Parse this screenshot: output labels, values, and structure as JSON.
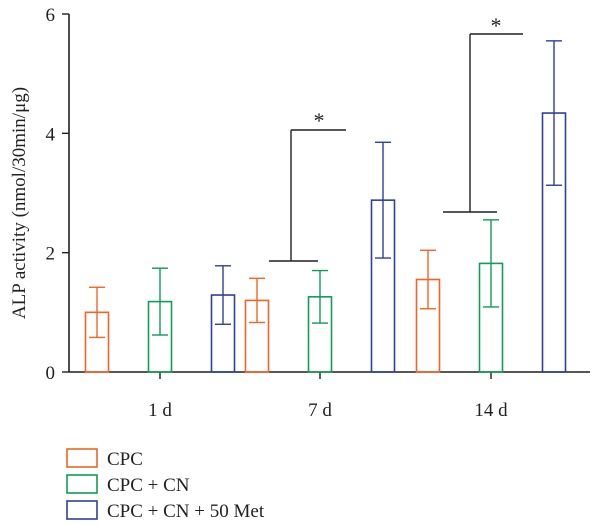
{
  "chart_data": {
    "type": "bar",
    "categories": [
      "1 d",
      "7 d",
      "14 d"
    ],
    "series": [
      {
        "name": "CPC",
        "values": [
          1.0,
          1.2,
          1.55
        ],
        "errors": [
          0.42,
          0.37,
          0.49
        ],
        "color": "#f26522"
      },
      {
        "name": "CPC + CN",
        "values": [
          1.18,
          1.26,
          1.82
        ],
        "errors": [
          0.56,
          0.44,
          0.73
        ],
        "color": "#0f9d58"
      },
      {
        "name": "CPC + CN + 50 Met",
        "values": [
          1.29,
          2.88,
          4.34
        ],
        "errors": [
          0.49,
          0.97,
          1.21
        ],
        "color": "#2e3f9e"
      }
    ],
    "ylabel": "ALP activity (nmol/30min/μg)",
    "xlabel": "",
    "ylim": [
      0,
      6
    ],
    "yticks": [
      0,
      2,
      4,
      6
    ],
    "grid": false,
    "legend_position": "bottom-left",
    "annotations": [
      {
        "text": "*",
        "category": "7 d",
        "compares": [
          "CPC",
          "CPC + CN + 50 Met"
        ]
      },
      {
        "text": "*",
        "category": "14 d",
        "compares": [
          "CPC",
          "CPC + CN + 50 Met"
        ]
      }
    ]
  }
}
